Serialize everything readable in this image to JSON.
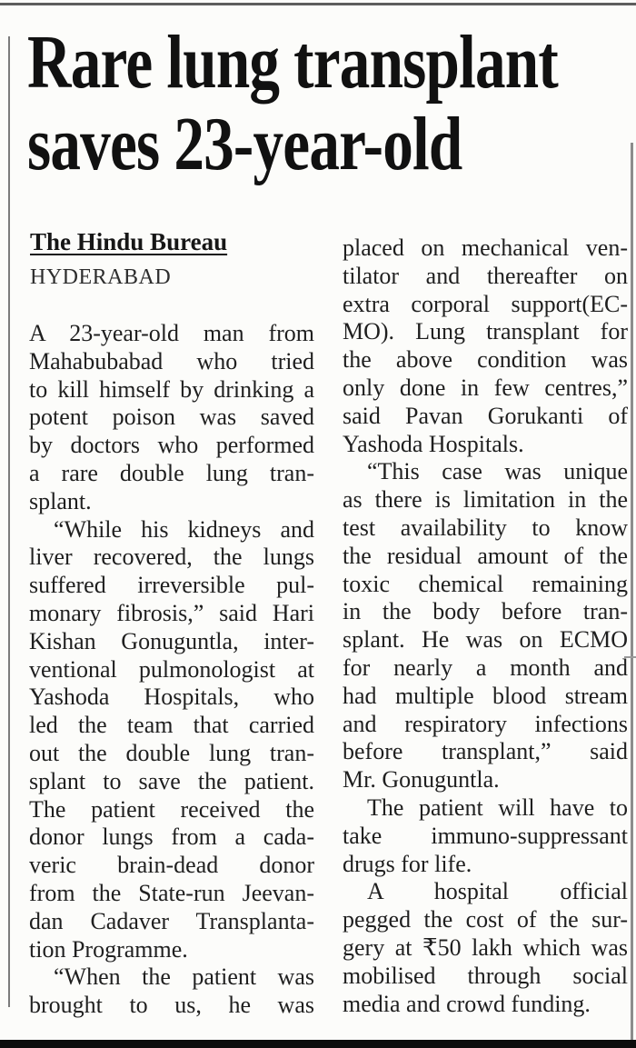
{
  "page": {
    "background": "#fcfcfa",
    "text_color": "#1f1f1f",
    "rule_color": "#7c7c7c",
    "bottom_bar_color": "#0c0c0c"
  },
  "article": {
    "headline": {
      "line1": "Rare lung transplant",
      "line2": "saves 23-year-old"
    },
    "byline": "The Hindu Bureau",
    "dateline": "HYDERABAD",
    "columns": {
      "left": [
        {
          "text": "A 23-year-old man from"
        },
        {
          "text": "Mahabubabad who tried"
        },
        {
          "text": "to kill himself by drinking a"
        },
        {
          "text": "potent poison was saved"
        },
        {
          "text": "by doctors who performed"
        },
        {
          "text": "a rare double lung tran-"
        },
        {
          "text": "splant.",
          "para_end": true
        },
        {
          "text": "“While his kidneys and",
          "indent": true
        },
        {
          "text": "liver recovered, the lungs"
        },
        {
          "text": "suffered irreversible pul-"
        },
        {
          "text": "monary fibrosis,” said Hari"
        },
        {
          "text": "Kishan Gonuguntla, inter-"
        },
        {
          "text": "ventional pulmonologist at"
        },
        {
          "text": "Yashoda Hospitals, who"
        },
        {
          "text": "led the team that carried"
        },
        {
          "text": "out the double lung tran-"
        },
        {
          "text": "splant to save the patient."
        },
        {
          "text": "The patient received the"
        },
        {
          "text": "donor lungs from a cada-"
        },
        {
          "text": "veric brain-dead donor"
        },
        {
          "text": "from the State-run Jeevan-"
        },
        {
          "text": "dan Cadaver Transplanta-"
        },
        {
          "text": "tion Programme.",
          "para_end": true
        },
        {
          "text": "“When the patient was",
          "indent": true
        },
        {
          "text": "brought to us, he was"
        }
      ],
      "right": [
        {
          "text": "placed on mechanical ven-"
        },
        {
          "text": "tilator and thereafter on"
        },
        {
          "text": "extra corporal support(EC-"
        },
        {
          "text": "MO). Lung transplant for"
        },
        {
          "text": "the above condition was"
        },
        {
          "text": "only done in few centres,”"
        },
        {
          "text": "said Pavan Gorukanti of"
        },
        {
          "text": "Yashoda Hospitals.",
          "para_end": true
        },
        {
          "text": "“This case was unique",
          "indent": true
        },
        {
          "text": "as there is limitation in the"
        },
        {
          "text": "test availability to know"
        },
        {
          "text": "the residual amount of the"
        },
        {
          "text": "toxic chemical remaining"
        },
        {
          "text": "in the body before tran-"
        },
        {
          "text": "splant. He was on ECMO"
        },
        {
          "text": "for nearly a month and"
        },
        {
          "text": "had multiple blood stream"
        },
        {
          "text": "and respiratory infections"
        },
        {
          "text": "before transplant,” said"
        },
        {
          "text": "Mr. Gonuguntla.",
          "para_end": true
        },
        {
          "text": "The patient will have to",
          "indent": true
        },
        {
          "text": "take immuno-suppressant"
        },
        {
          "text": "drugs for life.",
          "para_end": true
        },
        {
          "text": "A hospital official",
          "indent": true
        },
        {
          "text": "pegged the cost of the sur-"
        },
        {
          "text": "gery at ₹50 lakh which was"
        },
        {
          "text": "mobilised through social"
        },
        {
          "text": "media and crowd funding.",
          "para_end": true
        }
      ]
    }
  }
}
